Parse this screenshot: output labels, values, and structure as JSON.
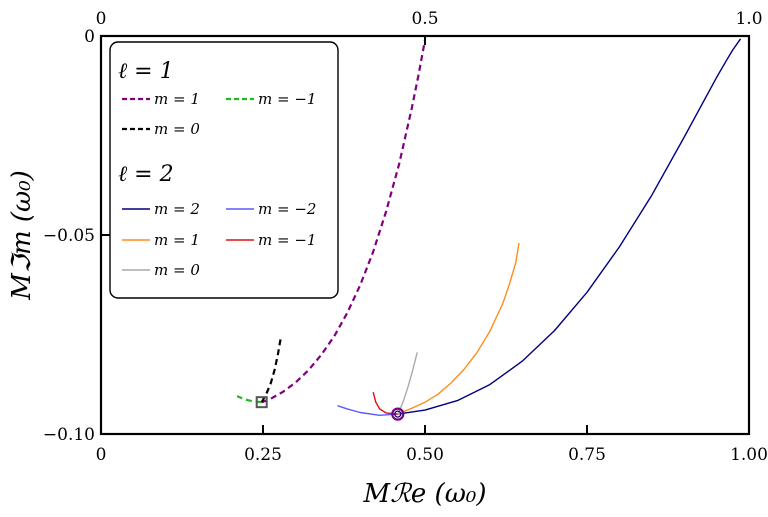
{
  "chart_data": {
    "type": "line",
    "xlabel": "Mℛe (ω₀)",
    "ylabel": "Mℑm (ω₀)",
    "xlim": [
      0,
      1
    ],
    "ylim": [
      -0.1,
      0
    ],
    "x_ticks_bottom": [
      0,
      0.25,
      0.5,
      0.75,
      1.0
    ],
    "x_tick_labels_bottom": [
      "0",
      "0.25",
      "0.50",
      "0.75",
      "1.00"
    ],
    "x_ticks_top": [
      0,
      0.5,
      1.0
    ],
    "x_tick_labels_top": [
      "0",
      "0.5",
      "1.0"
    ],
    "y_ticks": [
      0,
      -0.05,
      -0.1
    ],
    "y_tick_labels": [
      "0",
      "−0.05",
      "−0.10"
    ],
    "grid": false,
    "legend_position": "top-left",
    "legend_groups": [
      {
        "title": "ℓ = 1",
        "entries": [
          {
            "label": "m = 1",
            "style": "dashed",
            "color": "#7f007f"
          },
          {
            "label": "m = −1",
            "style": "dashed",
            "color": "#22b822"
          },
          {
            "label": "m = 0",
            "style": "dashed",
            "color": "#000000"
          }
        ]
      },
      {
        "title": "ℓ = 2",
        "entries": [
          {
            "label": "m = 2",
            "style": "solid",
            "color": "#000080"
          },
          {
            "label": "m = −2",
            "style": "solid",
            "color": "#5a5aff"
          },
          {
            "label": "m = 1",
            "style": "solid",
            "color": "#ff8c1a"
          },
          {
            "label": "m = −1",
            "style": "solid",
            "color": "#e01010"
          },
          {
            "label": "m = 0",
            "style": "solid",
            "color": "#aaaaaa"
          }
        ]
      }
    ],
    "series": [
      {
        "name": "l1-m1",
        "color": "#7f007f",
        "style": "dashed",
        "width": 2.2,
        "points": [
          [
            0.248,
            -0.092
          ],
          [
            0.26,
            -0.0913
          ],
          [
            0.28,
            -0.0895
          ],
          [
            0.3,
            -0.0871
          ],
          [
            0.32,
            -0.084
          ],
          [
            0.34,
            -0.0801
          ],
          [
            0.36,
            -0.0754
          ],
          [
            0.38,
            -0.0696
          ],
          [
            0.4,
            -0.0626
          ],
          [
            0.42,
            -0.0542
          ],
          [
            0.44,
            -0.0441
          ],
          [
            0.46,
            -0.0322
          ],
          [
            0.48,
            -0.0179
          ],
          [
            0.49,
            -0.0098
          ],
          [
            0.5,
            -0.001
          ]
        ]
      },
      {
        "name": "l1-m-1",
        "color": "#22b822",
        "style": "dashed",
        "width": 2.2,
        "points": [
          [
            0.248,
            -0.092
          ],
          [
            0.235,
            -0.0918
          ],
          [
            0.222,
            -0.0913
          ],
          [
            0.21,
            -0.0905
          ]
        ]
      },
      {
        "name": "l1-m0",
        "color": "#000000",
        "style": "dashed",
        "width": 2.2,
        "points": [
          [
            0.248,
            -0.092
          ],
          [
            0.255,
            -0.09
          ],
          [
            0.262,
            -0.0872
          ],
          [
            0.268,
            -0.0838
          ],
          [
            0.273,
            -0.08
          ],
          [
            0.277,
            -0.0762
          ]
        ]
      },
      {
        "name": "l2-m2",
        "color": "#000080",
        "style": "solid",
        "width": 1.4,
        "points": [
          [
            0.458,
            -0.095
          ],
          [
            0.5,
            -0.094
          ],
          [
            0.55,
            -0.0916
          ],
          [
            0.6,
            -0.0876
          ],
          [
            0.65,
            -0.0817
          ],
          [
            0.7,
            -0.074
          ],
          [
            0.75,
            -0.0644
          ],
          [
            0.8,
            -0.053
          ],
          [
            0.85,
            -0.04
          ],
          [
            0.9,
            -0.0254
          ],
          [
            0.95,
            -0.0104
          ],
          [
            0.965,
            -0.0062
          ],
          [
            0.975,
            -0.0035
          ],
          [
            0.987,
            -0.0007
          ]
        ]
      },
      {
        "name": "l2-m-2",
        "color": "#5a5aff",
        "style": "solid",
        "width": 1.4,
        "points": [
          [
            0.458,
            -0.095
          ],
          [
            0.43,
            -0.0953
          ],
          [
            0.4,
            -0.0946
          ],
          [
            0.38,
            -0.0937
          ],
          [
            0.365,
            -0.0929
          ]
        ]
      },
      {
        "name": "l2-m1",
        "color": "#ff8c1a",
        "style": "solid",
        "width": 1.4,
        "points": [
          [
            0.458,
            -0.095
          ],
          [
            0.48,
            -0.0935
          ],
          [
            0.5,
            -0.092
          ],
          [
            0.52,
            -0.09
          ],
          [
            0.54,
            -0.0872
          ],
          [
            0.56,
            -0.0838
          ],
          [
            0.58,
            -0.0796
          ],
          [
            0.6,
            -0.0742
          ],
          [
            0.62,
            -0.0672
          ],
          [
            0.63,
            -0.0625
          ],
          [
            0.64,
            -0.057
          ],
          [
            0.645,
            -0.052
          ]
        ]
      },
      {
        "name": "l2-m-1",
        "color": "#e01010",
        "style": "solid",
        "width": 1.4,
        "points": [
          [
            0.458,
            -0.095
          ],
          [
            0.44,
            -0.0947
          ],
          [
            0.43,
            -0.0937
          ],
          [
            0.424,
            -0.092
          ],
          [
            0.42,
            -0.0895
          ]
        ]
      },
      {
        "name": "l2-m0",
        "color": "#aaaaaa",
        "style": "solid",
        "width": 1.4,
        "points": [
          [
            0.458,
            -0.095
          ],
          [
            0.466,
            -0.092
          ],
          [
            0.474,
            -0.088
          ],
          [
            0.481,
            -0.084
          ],
          [
            0.488,
            -0.0795
          ]
        ]
      }
    ],
    "markers": [
      {
        "name": "l1-degenerate-point",
        "shape": "square",
        "x": 0.248,
        "y": -0.092
      },
      {
        "name": "l2-degenerate-point",
        "shape": "circle",
        "x": 0.458,
        "y": -0.095
      }
    ]
  }
}
